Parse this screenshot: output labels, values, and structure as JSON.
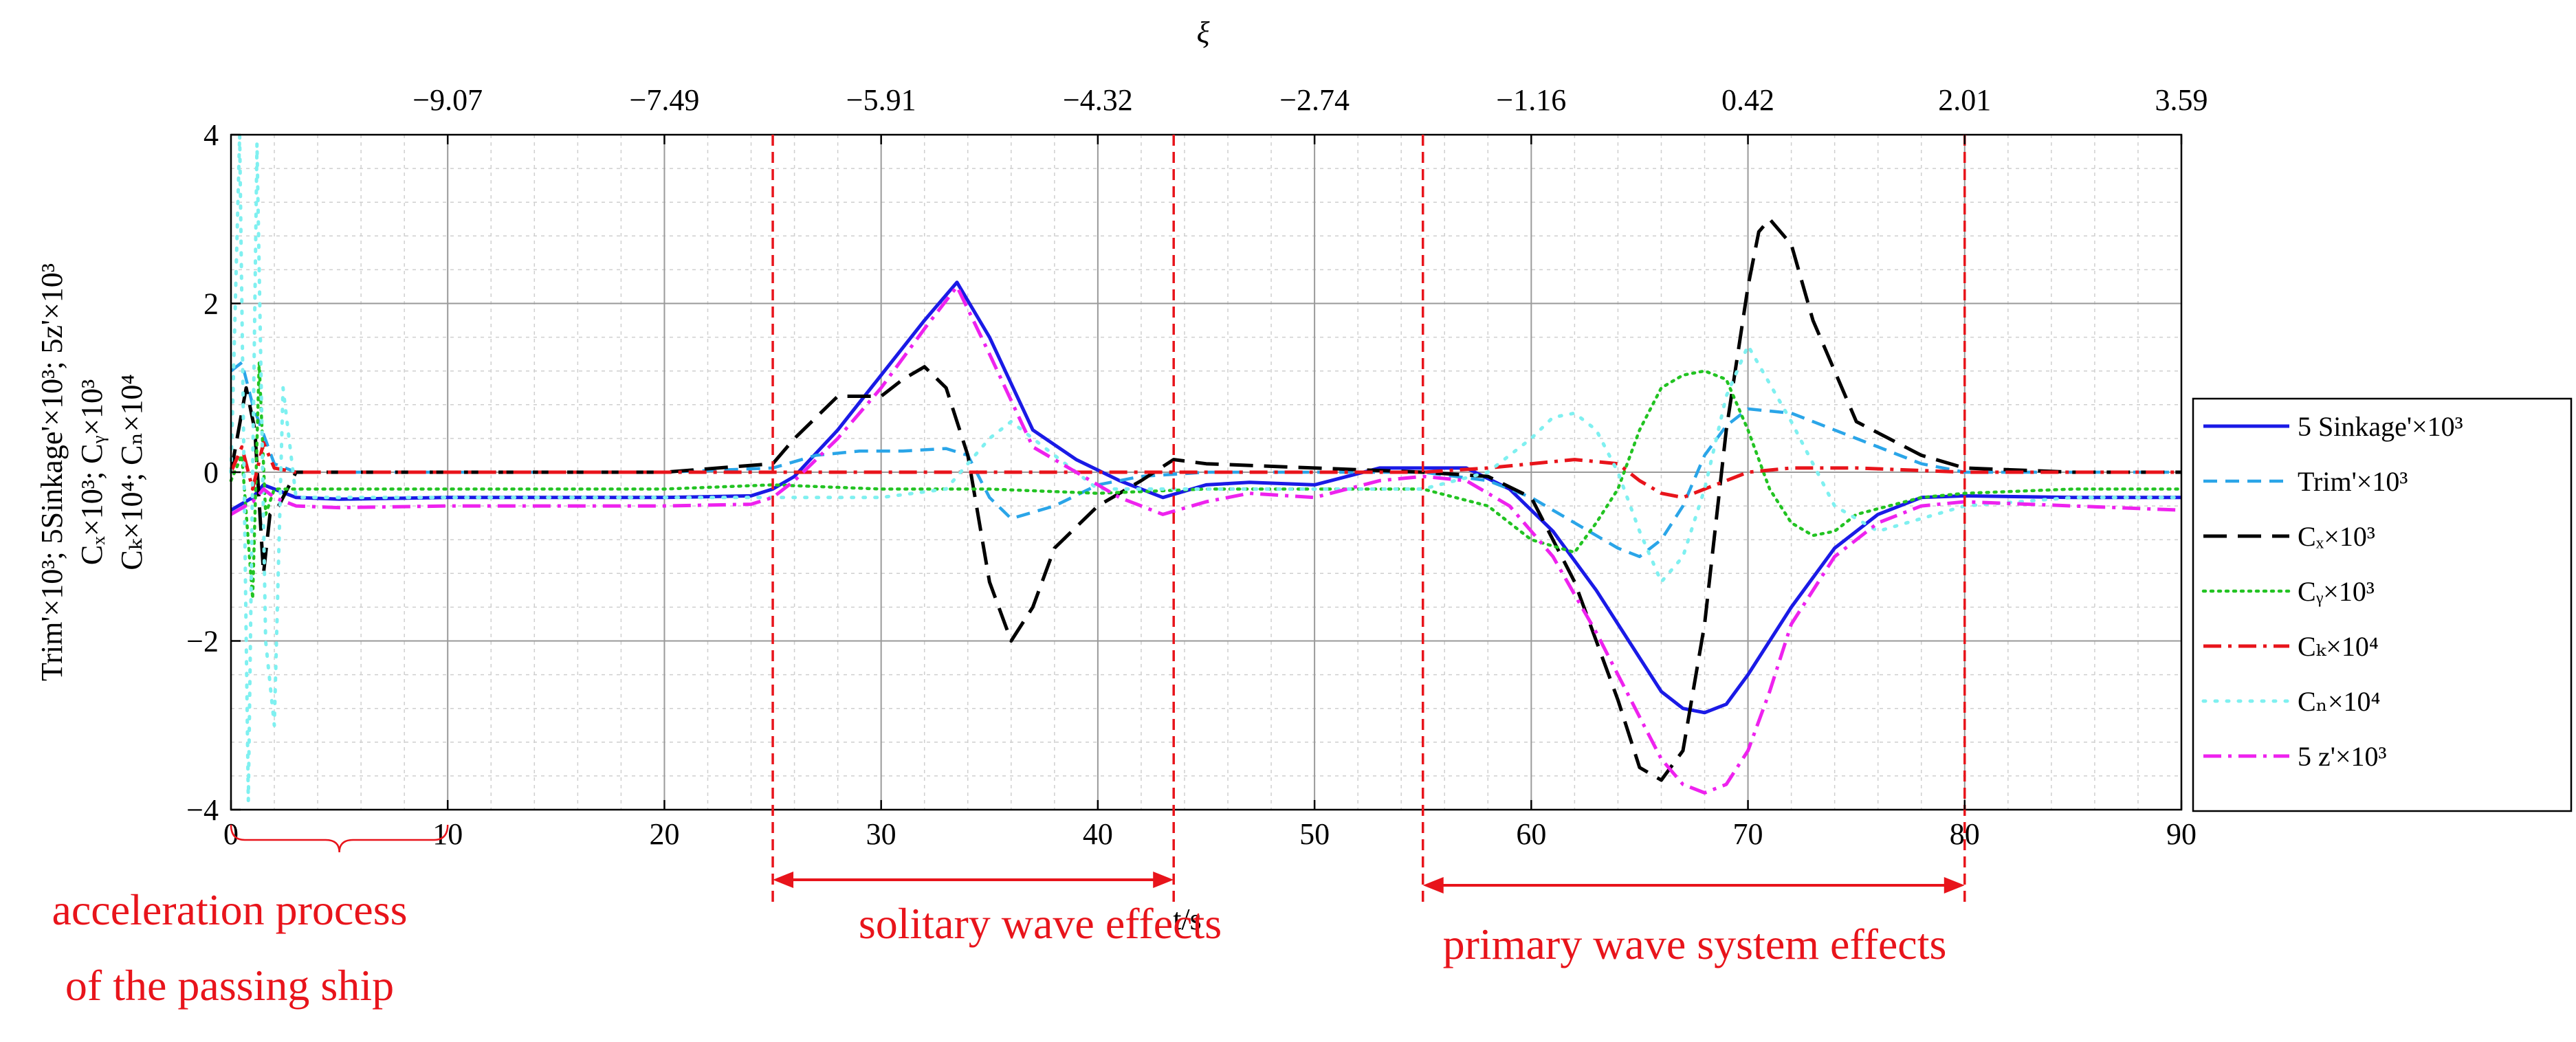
{
  "chart_data": {
    "type": "line",
    "xlabel": "t/s",
    "xlim": [
      0,
      90
    ],
    "x_ticks": [
      0,
      10,
      20,
      30,
      40,
      50,
      60,
      70,
      80,
      90
    ],
    "ylim": [
      -4,
      4
    ],
    "y_ticks": [
      -4,
      -2,
      0,
      2,
      4
    ],
    "y_label_lines": [
      "Trim'×10³; 5Sinkage'×10³; 5z'×10³",
      "Cₓ×10³; Cᵧ×10³",
      "Cₖ×10⁴; Cₙ×10⁴"
    ],
    "top_axis": {
      "label": "ξ",
      "tick_positions_t": [
        10,
        20,
        30,
        40,
        50,
        60,
        70,
        80,
        90
      ],
      "tick_labels": [
        "−9.07",
        "−7.49",
        "−5.91",
        "−4.32",
        "−2.74",
        "−1.16",
        "0.42",
        "2.01",
        "3.59"
      ]
    },
    "grid": true,
    "legend_position": "right",
    "colors": {
      "sinkage": "#1a1ae6",
      "trim": "#2aa5e8",
      "cx": "#000000",
      "cy": "#22c322",
      "ck": "#e8141b",
      "cn": "#7ff0f0",
      "z": "#ee22ee",
      "annotation": "#e8141b"
    },
    "series": [
      {
        "key": "sinkage",
        "name": "5 Sinkage'×10³",
        "style": "solid",
        "x": [
          0,
          1,
          1.5,
          2,
          3,
          5,
          10,
          15,
          20,
          24,
          25,
          26,
          28,
          30,
          32,
          33.5,
          35,
          37,
          39,
          41,
          43,
          45,
          47,
          50,
          53,
          55,
          57,
          59,
          61,
          63,
          65,
          66,
          67,
          68,
          69,
          70,
          72,
          74,
          76,
          78,
          80,
          85,
          90
        ],
        "y": [
          -0.45,
          -0.3,
          -0.15,
          -0.2,
          -0.3,
          -0.32,
          -0.3,
          -0.3,
          -0.3,
          -0.28,
          -0.2,
          -0.05,
          0.5,
          1.15,
          1.8,
          2.25,
          1.6,
          0.5,
          0.15,
          -0.1,
          -0.3,
          -0.15,
          -0.12,
          -0.15,
          0.05,
          0.05,
          0.05,
          -0.2,
          -0.7,
          -1.4,
          -2.2,
          -2.6,
          -2.8,
          -2.85,
          -2.75,
          -2.4,
          -1.6,
          -0.9,
          -0.5,
          -0.3,
          -0.28,
          -0.3,
          -0.3
        ]
      },
      {
        "key": "trim",
        "name": "Trim'×10³",
        "style": "dashed",
        "x": [
          0,
          0.5,
          1,
          2,
          3,
          5,
          10,
          20,
          25,
          27,
          29,
          31,
          33,
          34,
          35,
          36,
          38,
          40,
          42,
          45,
          50,
          55,
          58,
          60,
          62,
          64,
          65,
          66,
          67,
          68,
          69,
          70,
          72,
          75,
          78,
          80,
          85,
          90
        ],
        "y": [
          1.2,
          1.3,
          0.8,
          0.1,
          0.0,
          0.0,
          0.0,
          0.0,
          0.05,
          0.2,
          0.25,
          0.25,
          0.28,
          0.2,
          -0.3,
          -0.55,
          -0.4,
          -0.15,
          -0.05,
          0.0,
          0.0,
          0.0,
          -0.1,
          -0.3,
          -0.6,
          -0.9,
          -1.0,
          -0.8,
          -0.4,
          0.2,
          0.55,
          0.75,
          0.7,
          0.4,
          0.1,
          0.0,
          0.0,
          0.0
        ]
      },
      {
        "key": "cx",
        "name": "Cₓ×10³",
        "style": "longdash",
        "x": [
          0,
          0.7,
          1.1,
          1.5,
          1.8,
          2.2,
          3,
          5,
          10,
          20,
          25,
          26,
          28,
          30,
          31,
          32,
          33,
          34,
          35,
          36,
          37,
          38,
          40,
          42,
          43.5,
          45,
          50,
          55,
          58,
          60,
          62,
          64,
          65,
          66,
          67,
          68,
          69,
          70,
          70.5,
          71,
          72,
          73,
          75,
          78,
          80,
          85,
          90
        ],
        "y": [
          0.0,
          1.0,
          0.5,
          -1.2,
          -0.5,
          -0.4,
          0.0,
          0.0,
          0.0,
          0.0,
          0.1,
          0.4,
          0.9,
          0.9,
          1.1,
          1.25,
          1.0,
          0.2,
          -1.3,
          -2.0,
          -1.6,
          -0.9,
          -0.4,
          -0.1,
          0.15,
          0.1,
          0.05,
          0.0,
          -0.05,
          -0.3,
          -1.3,
          -2.7,
          -3.5,
          -3.65,
          -3.3,
          -1.8,
          0.5,
          2.2,
          2.85,
          3.0,
          2.7,
          1.8,
          0.6,
          0.2,
          0.05,
          0.0,
          0.0
        ]
      },
      {
        "key": "cy",
        "name": "Cᵧ×10³",
        "style": "dotted",
        "x": [
          0,
          0.5,
          1,
          1.3,
          1.6,
          2,
          3,
          5,
          10,
          20,
          25,
          30,
          35,
          40,
          45,
          50,
          55,
          58,
          60,
          62,
          63,
          64,
          65,
          66,
          67,
          68,
          69,
          70,
          71,
          72,
          73,
          74,
          75,
          78,
          80,
          85,
          90
        ],
        "y": [
          -0.1,
          0.2,
          -1.5,
          1.3,
          -0.5,
          -0.2,
          -0.2,
          -0.2,
          -0.2,
          -0.2,
          -0.15,
          -0.2,
          -0.2,
          -0.25,
          -0.2,
          -0.2,
          -0.2,
          -0.4,
          -0.8,
          -0.95,
          -0.6,
          -0.2,
          0.5,
          1.0,
          1.15,
          1.2,
          1.1,
          0.5,
          -0.2,
          -0.6,
          -0.75,
          -0.7,
          -0.5,
          -0.3,
          -0.25,
          -0.2,
          -0.2
        ]
      },
      {
        "key": "ck",
        "name": "Cₖ×10⁴",
        "style": "dashdot",
        "x": [
          0,
          0.5,
          1,
          1.5,
          2,
          3,
          5,
          10,
          20,
          30,
          40,
          50,
          55,
          58,
          60,
          62,
          64,
          65,
          66,
          67,
          68,
          70,
          72,
          75,
          80,
          85,
          90
        ],
        "y": [
          0.0,
          0.3,
          -0.2,
          0.35,
          0.05,
          0.0,
          0.0,
          0.0,
          0.0,
          0.0,
          0.0,
          0.0,
          0.0,
          0.05,
          0.1,
          0.15,
          0.1,
          -0.1,
          -0.25,
          -0.3,
          -0.2,
          0.0,
          0.05,
          0.05,
          0.0,
          0.0,
          0.0
        ]
      },
      {
        "key": "cn",
        "name": "Cₙ×10⁴",
        "style": "sparse-dotted",
        "x": [
          0,
          0.4,
          0.8,
          1.2,
          1.6,
          2,
          2.4,
          3,
          5,
          10,
          20,
          25,
          30,
          33,
          35,
          36,
          38,
          40,
          45,
          50,
          55,
          58,
          60,
          61,
          62,
          63,
          64,
          65,
          66,
          67,
          68,
          69,
          70,
          72,
          74,
          76,
          80,
          85,
          90
        ],
        "y": [
          0.0,
          4.0,
          -3.9,
          3.9,
          -2.0,
          -3.0,
          1.0,
          -0.3,
          -0.3,
          -0.3,
          -0.3,
          -0.3,
          -0.3,
          -0.2,
          0.4,
          0.6,
          0.2,
          -0.2,
          -0.2,
          -0.2,
          -0.2,
          0.0,
          0.4,
          0.65,
          0.7,
          0.5,
          0.0,
          -0.7,
          -1.3,
          -1.0,
          -0.2,
          0.9,
          1.5,
          0.6,
          -0.4,
          -0.7,
          -0.4,
          -0.3,
          -0.3
        ]
      },
      {
        "key": "z",
        "name": "5 z'×10³",
        "style": "dashdot",
        "x": [
          0,
          1,
          1.5,
          2,
          3,
          5,
          10,
          15,
          20,
          24,
          25,
          26,
          28,
          30,
          32,
          33.5,
          35,
          37,
          39,
          41,
          43,
          45,
          47,
          50,
          53,
          55,
          57,
          59,
          61,
          63,
          65,
          66,
          67,
          68,
          69,
          70,
          71,
          72,
          74,
          76,
          78,
          80,
          85,
          90
        ],
        "y": [
          -0.5,
          -0.35,
          -0.2,
          -0.3,
          -0.4,
          -0.42,
          -0.4,
          -0.4,
          -0.4,
          -0.38,
          -0.3,
          -0.1,
          0.4,
          1.0,
          1.7,
          2.2,
          1.4,
          0.3,
          0.0,
          -0.3,
          -0.5,
          -0.35,
          -0.25,
          -0.3,
          -0.1,
          -0.05,
          -0.1,
          -0.4,
          -1.0,
          -1.9,
          -2.9,
          -3.4,
          -3.7,
          -3.8,
          -3.7,
          -3.3,
          -2.6,
          -1.8,
          -1.0,
          -0.6,
          -0.4,
          -0.35,
          -0.4,
          -0.45
        ]
      }
    ],
    "vlines": [
      25,
      43.5,
      55,
      80
    ],
    "annotations": {
      "brace": {
        "from": 0,
        "to": 10
      },
      "acceleration_line1": "acceleration process",
      "acceleration_line2": "of the passing ship",
      "solitary_label": "solitary wave effects",
      "solitary_range": [
        25,
        43.5
      ],
      "primary_label": "primary wave system effects",
      "primary_range": [
        55,
        80
      ]
    }
  }
}
